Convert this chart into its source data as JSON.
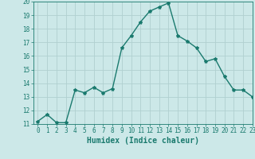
{
  "x": [
    0,
    1,
    2,
    3,
    4,
    5,
    6,
    7,
    8,
    9,
    10,
    11,
    12,
    13,
    14,
    15,
    16,
    17,
    18,
    19,
    20,
    21,
    22,
    23
  ],
  "y": [
    11.2,
    11.7,
    11.1,
    11.1,
    13.5,
    13.3,
    13.7,
    13.3,
    13.6,
    16.6,
    17.5,
    18.5,
    19.3,
    19.6,
    19.9,
    17.5,
    17.1,
    16.6,
    15.6,
    15.8,
    14.5,
    13.5,
    13.5,
    13.0
  ],
  "line_color": "#1a7a6e",
  "marker": "*",
  "marker_size": 3,
  "bg_color": "#cce8e8",
  "grid_color": "#b0d0d0",
  "xlabel": "Humidex (Indice chaleur)",
  "ylim": [
    11,
    20
  ],
  "xlim": [
    -0.5,
    23
  ],
  "yticks": [
    11,
    12,
    13,
    14,
    15,
    16,
    17,
    18,
    19,
    20
  ],
  "xticks": [
    0,
    1,
    2,
    3,
    4,
    5,
    6,
    7,
    8,
    9,
    10,
    11,
    12,
    13,
    14,
    15,
    16,
    17,
    18,
    19,
    20,
    21,
    22,
    23
  ],
  "xlabel_fontsize": 7,
  "tick_fontsize": 5.5,
  "line_width": 1.0
}
